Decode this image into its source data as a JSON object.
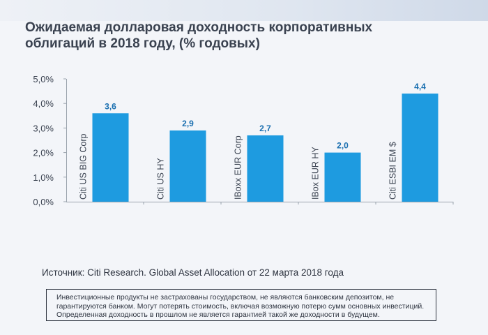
{
  "title": "Ожидаемая долларовая доходность корпоративных облигаций в 2018 году, (% годовых)",
  "source": "Источник: Citi Research. Global Asset Allocation от 22 марта 2018 года",
  "disclaimer": "Инвестиционные продукты не застрахованы государством, не являются банковским депозитом, не гарантируются банком. Могут потерять стоимость, включая возможную потерю сумм основных инвестиций. Определенная доходность в прошлом не является гарантией такой же доходности в будущем.",
  "colors": {
    "bar": "#1e9be0",
    "value_label": "#1a6fb0",
    "axis": "#9aa3ad"
  },
  "chart_data": {
    "type": "bar",
    "categories": [
      "Citi US BIG Corp",
      "Citi US HY",
      "IBoxx EUR Corp",
      "IBox EUR HY",
      "Citi ESBI EM $"
    ],
    "values": [
      3.6,
      2.9,
      2.7,
      2.0,
      4.4
    ],
    "value_labels": [
      "3,6",
      "2,9",
      "2,7",
      "2,0",
      "4,4"
    ],
    "yticks": [
      "0,0%",
      "1,0%",
      "2,0%",
      "3,0%",
      "4,0%",
      "5,0%"
    ],
    "ylim": [
      0,
      5
    ],
    "grid": false
  }
}
